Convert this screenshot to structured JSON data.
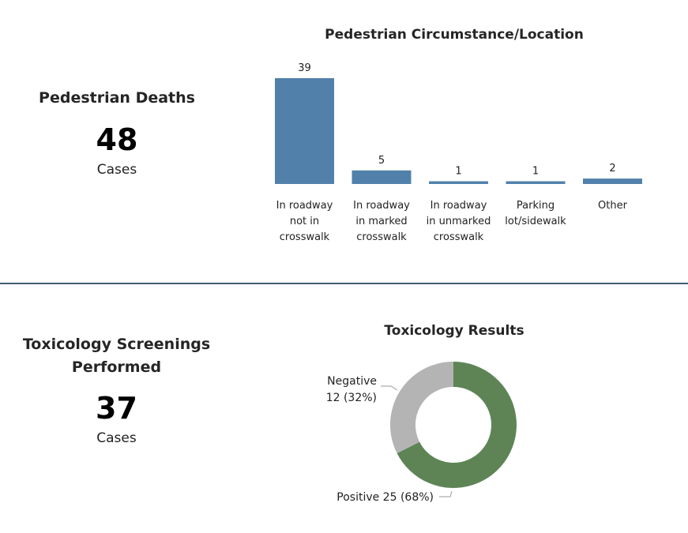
{
  "kpis": {
    "pedestrian_deaths": {
      "title": "Pedestrian Deaths",
      "value": "48",
      "unit": "Cases"
    },
    "tox_screenings": {
      "title_line1": "Toxicology Screenings",
      "title_line2": "Performed",
      "value": "37",
      "unit": "Cases"
    }
  },
  "chart_data": [
    {
      "type": "bar",
      "title": "Pedestrian Circumstance/Location",
      "categories": [
        [
          "In roadway",
          "not in",
          "crosswalk"
        ],
        [
          "In roadway",
          "in marked",
          "crosswalk"
        ],
        [
          "In roadway",
          "in unmarked",
          "crosswalk"
        ],
        [
          "Parking",
          "lot/sidewalk"
        ],
        [
          "Other"
        ]
      ],
      "values": [
        39,
        5,
        1,
        1,
        2
      ],
      "color": "#5181ab",
      "xlabel": "",
      "ylabel": "",
      "ylim": [
        0,
        39
      ]
    },
    {
      "type": "pie",
      "title": "Toxicology Results",
      "slices": [
        {
          "name": "Positive",
          "value": 25,
          "label": "Positive 25 (68%)",
          "color": "#5e8456"
        },
        {
          "name": "Negative",
          "value": 12,
          "label_line1": "Negative",
          "label_line2": "12 (32%)",
          "color": "#b4b4b4"
        }
      ]
    }
  ]
}
